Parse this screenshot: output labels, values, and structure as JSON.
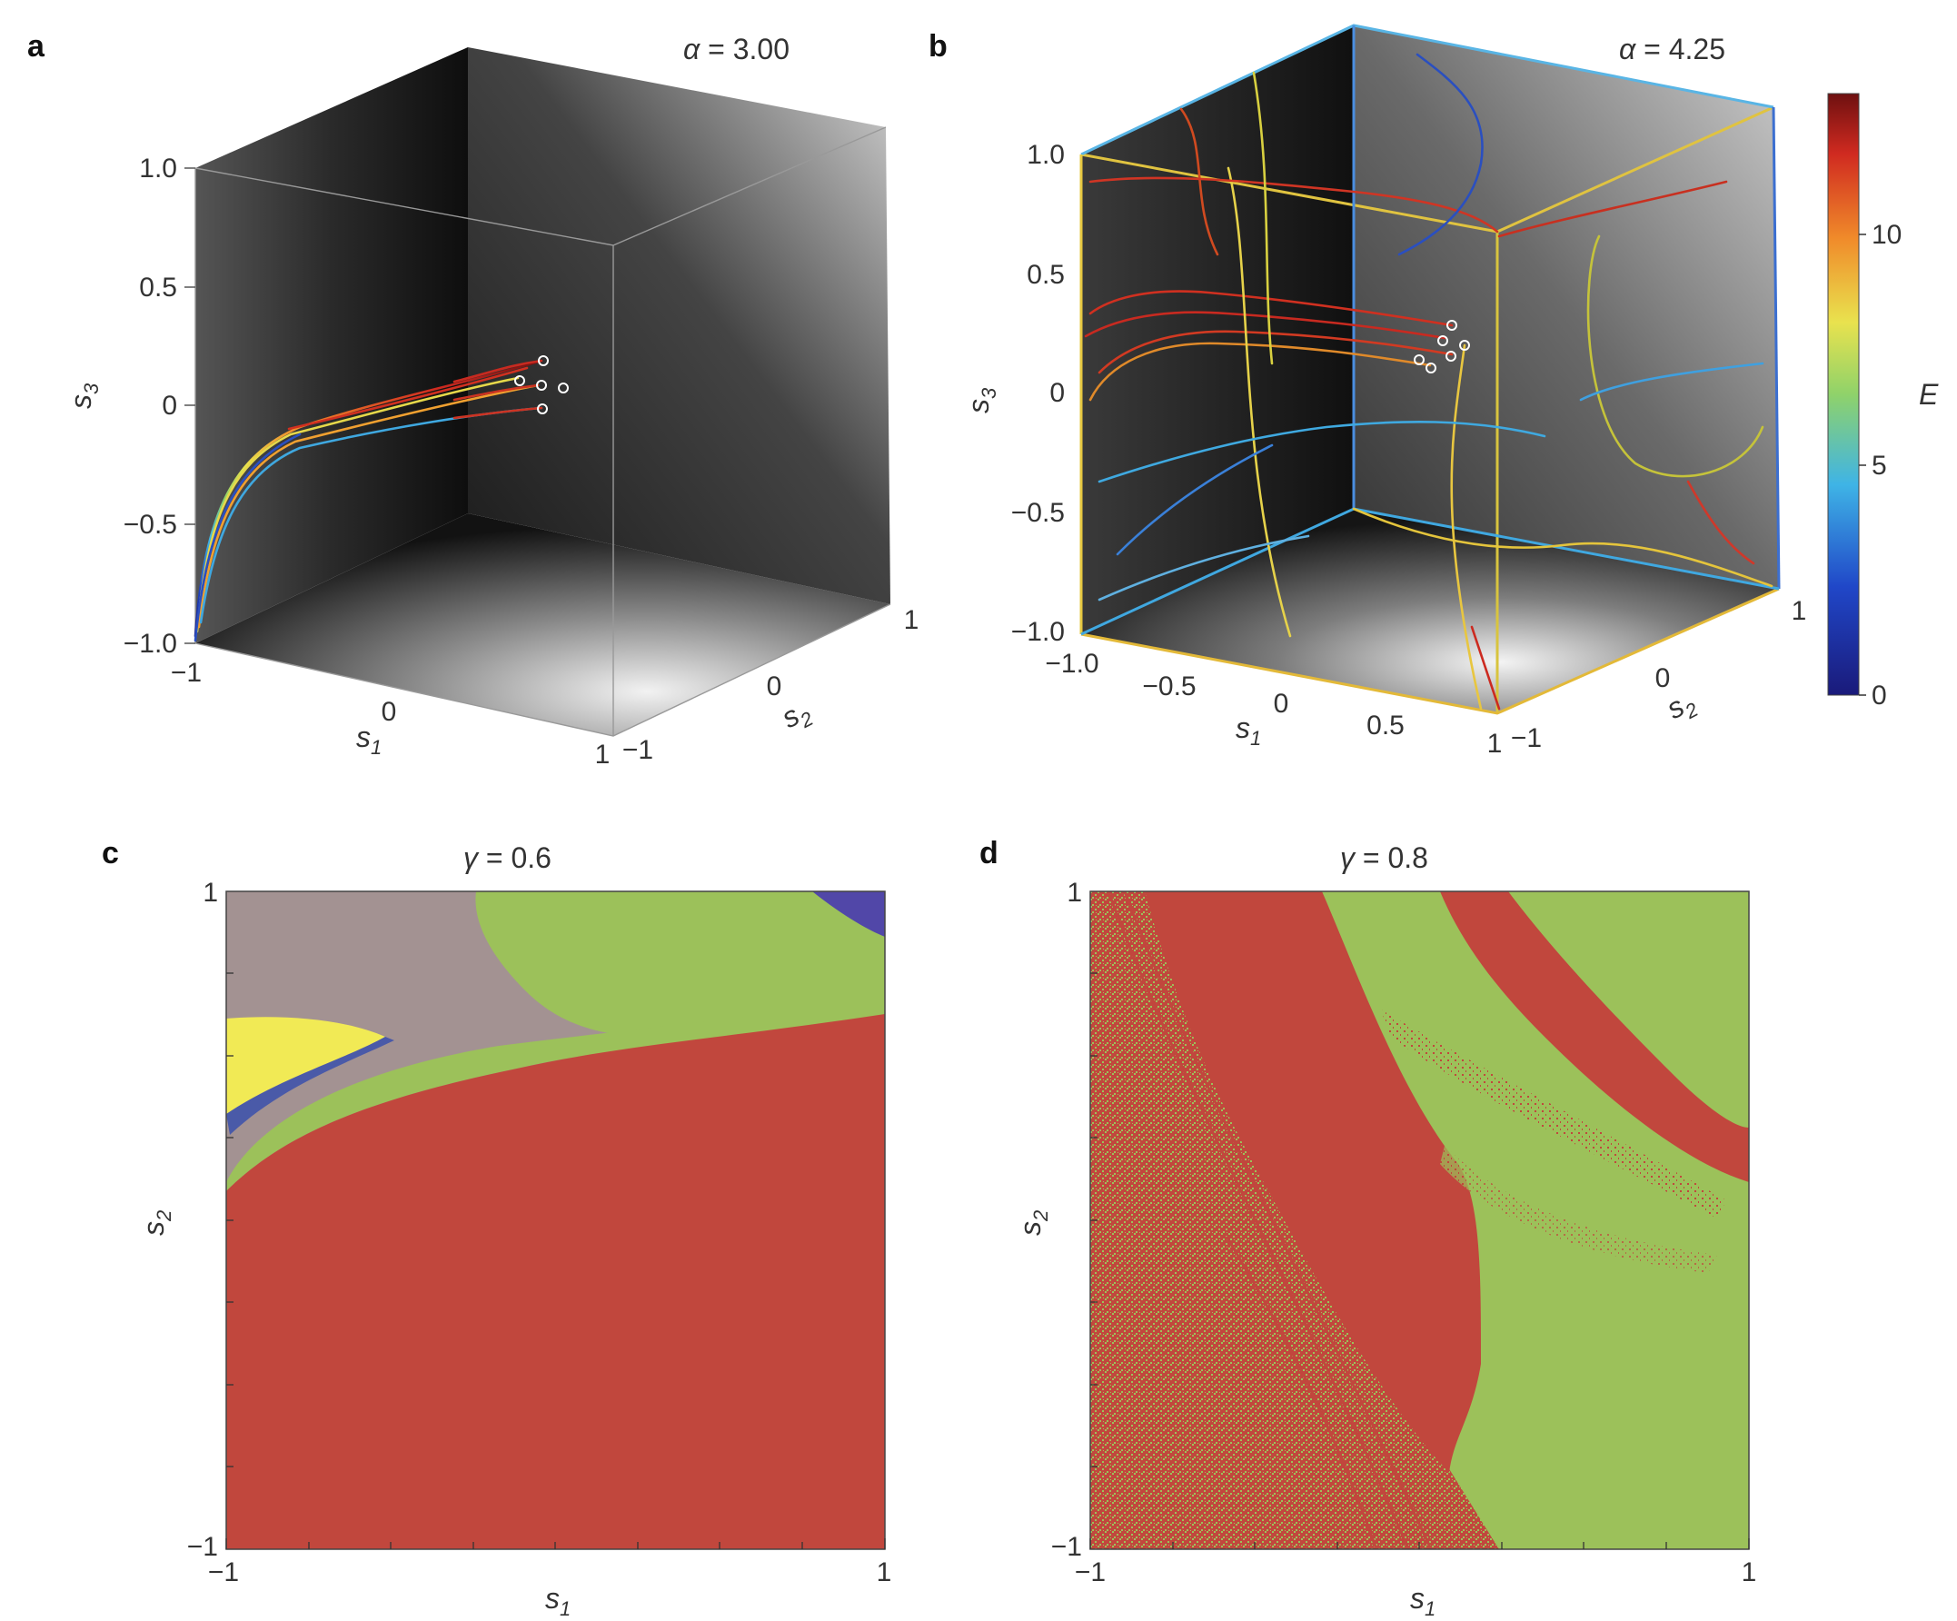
{
  "panels": {
    "a": {
      "label": "a",
      "param_symbol": "α",
      "param_text": " = 3.00",
      "axes": {
        "s1_label": "s",
        "s1_sub": "1",
        "s1_ticks": [
          "−1",
          "0",
          "1"
        ],
        "s2_label": "s",
        "s2_sub": "2",
        "s2_ticks": [
          "−1",
          "0",
          "1"
        ],
        "s3_label": "s",
        "s3_sub": "3",
        "s3_ticks": [
          "1.0",
          "0.5",
          "0",
          "−0.5",
          "−1.0"
        ]
      }
    },
    "b": {
      "label": "b",
      "param_symbol": "α",
      "param_text": " = 4.25",
      "axes": {
        "s1_label": "s",
        "s1_sub": "1",
        "s1_ticks": [
          "−1.0",
          "−0.5",
          "0",
          "0.5",
          "1"
        ],
        "s2_label": "s",
        "s2_sub": "2",
        "s2_ticks": [
          "−1",
          "0",
          "1"
        ],
        "s3_label": "s",
        "s3_sub": "3",
        "s3_ticks": [
          "1.0",
          "0.5",
          "0",
          "−0.5",
          "−1.0"
        ]
      },
      "colorbar": {
        "label": "E",
        "ticks": [
          "10",
          "5",
          "0"
        ]
      }
    },
    "c": {
      "label": "c",
      "param_symbol": "γ",
      "param_text": " = 0.6",
      "x_label": "s",
      "x_sub": "1",
      "x_ticks": [
        "−1",
        "1"
      ],
      "y_label": "s",
      "y_sub": "2",
      "y_ticks": [
        "1",
        "−1"
      ]
    },
    "d": {
      "label": "d",
      "param_symbol": "γ",
      "param_text": " = 0.8",
      "x_label": "s",
      "x_sub": "1",
      "x_ticks": [
        "−1",
        "1"
      ],
      "y_label": "s",
      "y_sub": "2",
      "y_ticks": [
        "1",
        "−1"
      ]
    }
  },
  "chart_data": [
    {
      "panel": "a",
      "type": "line",
      "subtype": "3d-trajectories",
      "title": "α = 3.00",
      "axes_ranges": {
        "s1": [
          -1,
          1
        ],
        "s2": [
          -1,
          1
        ],
        "s3": [
          -1,
          1
        ]
      },
      "color_encoding": "energy E (colorbar in panel b)",
      "trajectories": 5,
      "description_values": "five trajectories start near s ≈ (0.6, 0.6, 0.05) and converge toward s ≈ (−1, −1, −1)"
    },
    {
      "panel": "b",
      "type": "line",
      "subtype": "3d-trajectories",
      "title": "α = 4.25",
      "axes_ranges": {
        "s1": [
          -1,
          1
        ],
        "s2": [
          -1,
          1
        ],
        "s3": [
          -1,
          1
        ]
      },
      "colorbar": {
        "label": "E",
        "range": [
          0,
          13
        ],
        "ticks": [
          0,
          5,
          10
        ]
      },
      "trajectories": 6
    },
    {
      "panel": "c",
      "type": "heatmap",
      "subtype": "basin-of-attraction map",
      "title": "γ = 0.6",
      "xlim": [
        -1,
        1
      ],
      "ylim": [
        -1,
        1
      ],
      "regions": [
        "red",
        "green",
        "mauve",
        "yellow",
        "blue"
      ],
      "colors": {
        "red": "#c1473d",
        "green": "#9cc15a",
        "mauve": "#a39292",
        "yellow": "#f1ea55",
        "blue": "#5147a8"
      }
    },
    {
      "panel": "d",
      "type": "heatmap",
      "subtype": "basin-of-attraction map (fractal)",
      "title": "γ = 0.8",
      "xlim": [
        -1,
        1
      ],
      "ylim": [
        -1,
        1
      ],
      "regions": [
        "red",
        "green"
      ],
      "colors": {
        "red": "#c1473d",
        "green": "#9cc15a"
      }
    }
  ]
}
